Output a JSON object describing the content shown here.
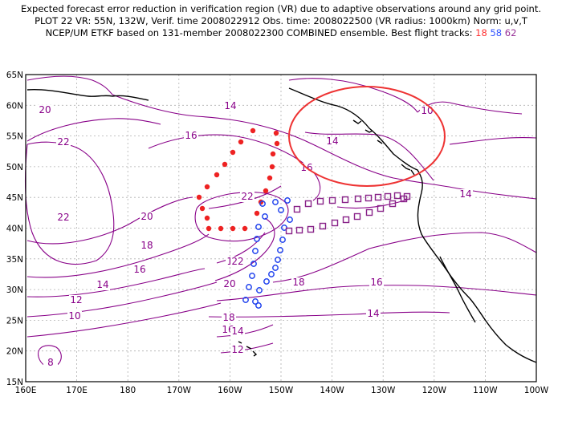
{
  "title": {
    "line1": "Expected forecast error reduction in verification region (VR) due to adaptive observations around any grid point.",
    "line2": "PLOT 22 VR: 55N, 132W, Verif. time 2008022912 Obs. time: 2008022500 (VR radius: 1000km) Norm: u,v,T",
    "line3_prefix": "NCEP/UM ETKF based on 131-member 2008022300 COMBINED ensemble.  Best flight tracks:",
    "track_red": "18",
    "track_blue": "58",
    "track_purple": "62"
  },
  "axes": {
    "lat_labels": [
      "65N",
      "60N",
      "55N",
      "50N",
      "45N",
      "40N",
      "35N",
      "30N",
      "25N",
      "20N",
      "15N"
    ],
    "lon_labels": [
      "160E",
      "170E",
      "180",
      "170W",
      "160W",
      "150W",
      "140W",
      "130W",
      "120W",
      "110W",
      "100W"
    ]
  },
  "contour_labels": [
    "20",
    "22",
    "22",
    "16",
    "14",
    "10",
    "14",
    "16",
    "14",
    "22",
    "20",
    "18",
    "18",
    "16",
    "18",
    "16",
    "14",
    "12",
    "10",
    "22",
    "20",
    "18",
    "16",
    "14",
    "14",
    "12",
    "8"
  ],
  "colors": {
    "contour": "#880088",
    "verification_circle": "#ee3333",
    "track_red": "#ee2222",
    "track_blue": "#2244ee",
    "track_purple": "#882288",
    "grid": "#b0b0b0",
    "coast": "#000000"
  }
}
